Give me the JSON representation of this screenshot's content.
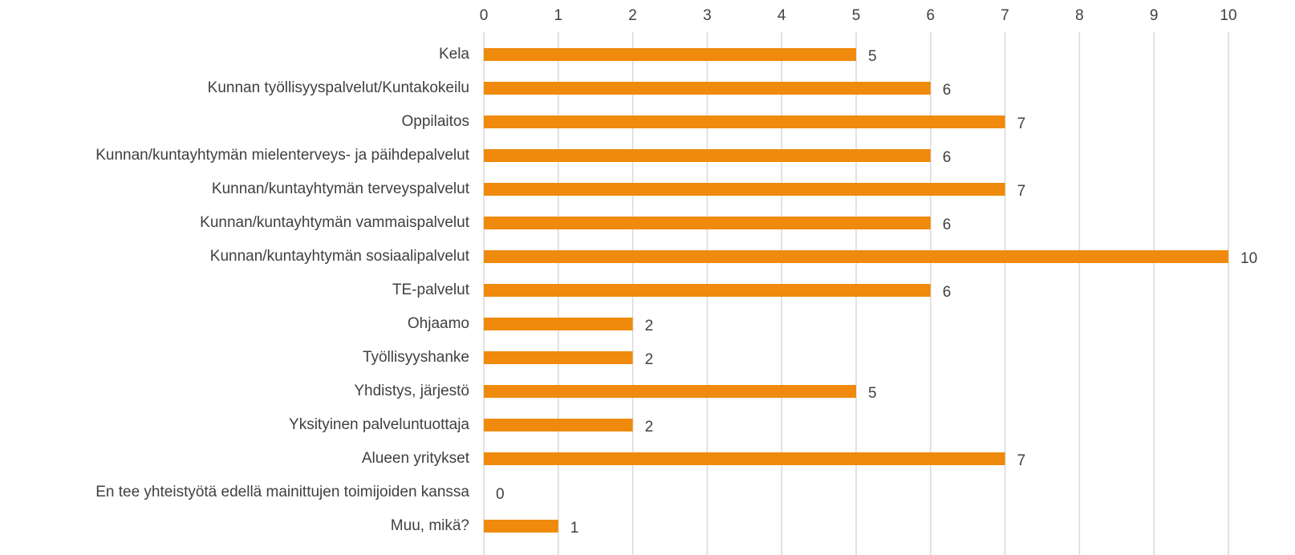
{
  "chart_data": {
    "type": "bar",
    "orientation": "horizontal",
    "categories": [
      "Kela",
      "Kunnan työllisyyspalvelut/Kuntakokeilu",
      "Oppilaitos",
      "Kunnan/kuntayhtymän mielenterveys- ja päihdepalvelut",
      "Kunnan/kuntayhtymän terveyspalvelut",
      "Kunnan/kuntayhtymän vammaispalvelut",
      "Kunnan/kuntayhtymän sosiaalipalvelut",
      "TE-palvelut",
      "Ohjaamo",
      "Työllisyyshanke",
      "Yhdistys, järjestö",
      "Yksityinen palveluntuottaja",
      "Alueen yritykset",
      "En tee yhteistyötä edellä mainittujen toimijoiden kanssa",
      "Muu, mikä?"
    ],
    "values": [
      5,
      6,
      7,
      6,
      7,
      6,
      10,
      6,
      2,
      2,
      5,
      2,
      7,
      0,
      1
    ],
    "color": "#ef8a0c",
    "xlim": [
      0,
      10
    ],
    "xticks": [
      0,
      1,
      2,
      3,
      4,
      5,
      6,
      7,
      8,
      9,
      10
    ],
    "grid": true
  }
}
